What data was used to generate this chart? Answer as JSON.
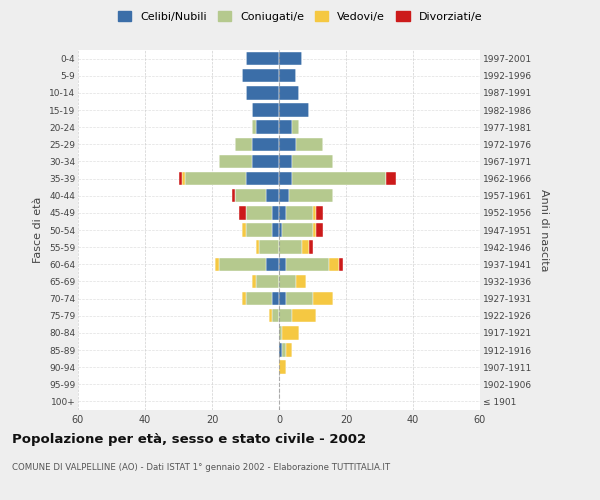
{
  "age_groups": [
    "100+",
    "95-99",
    "90-94",
    "85-89",
    "80-84",
    "75-79",
    "70-74",
    "65-69",
    "60-64",
    "55-59",
    "50-54",
    "45-49",
    "40-44",
    "35-39",
    "30-34",
    "25-29",
    "20-24",
    "15-19",
    "10-14",
    "5-9",
    "0-4"
  ],
  "birth_years": [
    "≤ 1901",
    "1902-1906",
    "1907-1911",
    "1912-1916",
    "1917-1921",
    "1922-1926",
    "1927-1931",
    "1932-1936",
    "1937-1941",
    "1942-1946",
    "1947-1951",
    "1952-1956",
    "1957-1961",
    "1962-1966",
    "1967-1971",
    "1972-1976",
    "1977-1981",
    "1982-1986",
    "1987-1991",
    "1992-1996",
    "1997-2001"
  ],
  "male": {
    "celibi": [
      0,
      0,
      0,
      0,
      0,
      0,
      2,
      0,
      4,
      0,
      2,
      2,
      4,
      10,
      8,
      8,
      7,
      8,
      10,
      11,
      10
    ],
    "coniugati": [
      0,
      0,
      0,
      0,
      0,
      2,
      8,
      7,
      14,
      6,
      8,
      8,
      9,
      18,
      10,
      5,
      1,
      0,
      0,
      0,
      0
    ],
    "vedovi": [
      0,
      0,
      0,
      0,
      0,
      1,
      1,
      1,
      1,
      1,
      1,
      0,
      0,
      1,
      0,
      0,
      0,
      0,
      0,
      0,
      0
    ],
    "divorziati": [
      0,
      0,
      0,
      0,
      0,
      0,
      0,
      0,
      0,
      0,
      0,
      2,
      1,
      1,
      0,
      0,
      0,
      0,
      0,
      0,
      0
    ]
  },
  "female": {
    "nubili": [
      0,
      0,
      0,
      1,
      0,
      0,
      2,
      0,
      2,
      0,
      1,
      2,
      3,
      4,
      4,
      5,
      4,
      9,
      6,
      5,
      7
    ],
    "coniugate": [
      0,
      0,
      0,
      1,
      1,
      4,
      8,
      5,
      13,
      7,
      9,
      8,
      13,
      28,
      12,
      8,
      2,
      0,
      0,
      0,
      0
    ],
    "vedove": [
      0,
      0,
      2,
      2,
      5,
      7,
      6,
      3,
      3,
      2,
      1,
      1,
      0,
      0,
      0,
      0,
      0,
      0,
      0,
      0,
      0
    ],
    "divorziate": [
      0,
      0,
      0,
      0,
      0,
      0,
      0,
      0,
      1,
      1,
      2,
      2,
      0,
      3,
      0,
      0,
      0,
      0,
      0,
      0,
      0
    ]
  },
  "colors": {
    "celibi": "#3b6ea8",
    "coniugati": "#b5c98e",
    "vedovi": "#f5c842",
    "divorziati": "#cc1a1a"
  },
  "legend_labels": [
    "Celibi/Nubili",
    "Coniugati/e",
    "Vedovi/e",
    "Divorziati/e"
  ],
  "xlim": 60,
  "title": "Popolazione per età, sesso e stato civile - 2002",
  "subtitle": "COMUNE DI VALPELLINE (AO) - Dati ISTAT 1° gennaio 2002 - Elaborazione TUTTITALIA.IT",
  "ylabel_left": "Fasce di età",
  "ylabel_right": "Anni di nascita",
  "bg_color": "#eeeeee",
  "plot_bg_color": "#ffffff",
  "grid_color": "#cccccc"
}
